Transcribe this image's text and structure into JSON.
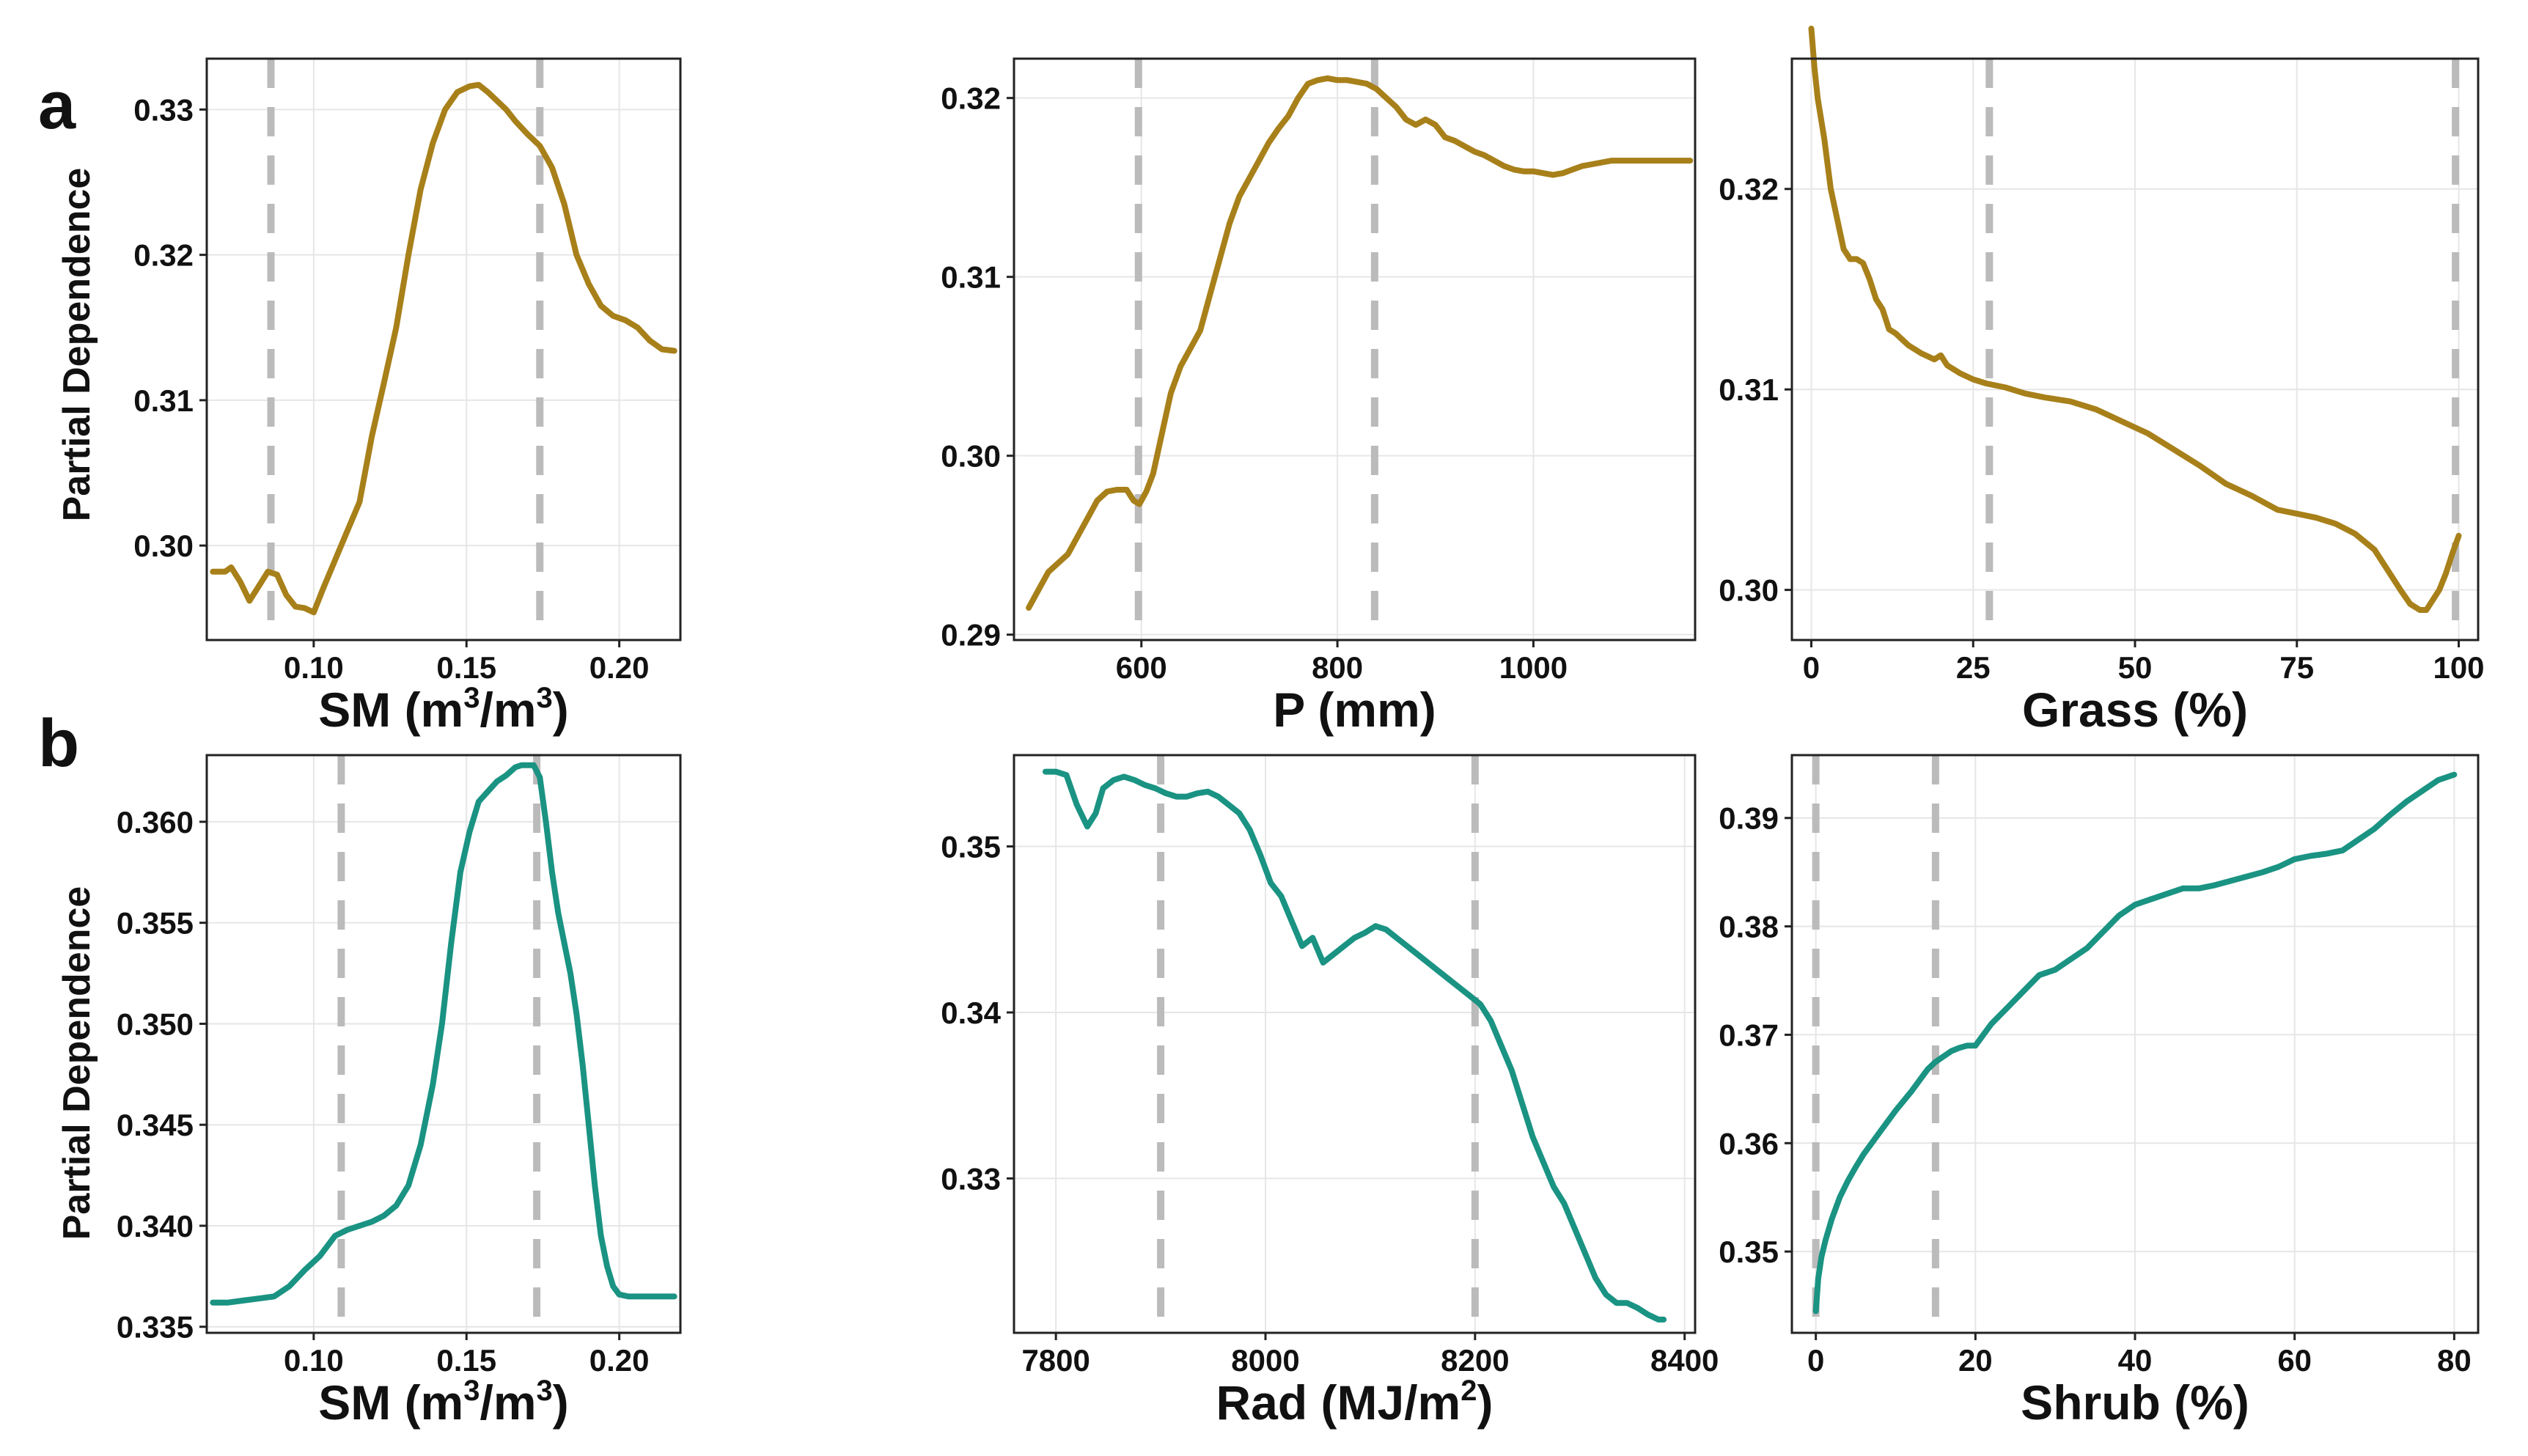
{
  "panel_labels": [
    "a",
    "b"
  ],
  "row_ylabel": "Partial Dependence",
  "colors": {
    "row_a": "#a8801a",
    "row_b": "#1a9383",
    "threshold": "#bbbbbb",
    "grid": "#e6e6e6"
  },
  "chart_data": [
    {
      "type": "line",
      "row": 0,
      "col": 0,
      "xlabel": [
        "SM (m",
        "3",
        "/m",
        "3",
        ")"
      ],
      "ylabel": "Partial Dependence",
      "xlim": [
        0.065,
        0.22
      ],
      "ylim": [
        0.2935,
        0.3335
      ],
      "xticks": [
        0.1,
        0.15,
        0.2
      ],
      "xtick_labels": [
        "0.10",
        "0.15",
        "0.20"
      ],
      "yticks": [
        0.3,
        0.31,
        0.32,
        0.33
      ],
      "ytick_labels": [
        "0.30",
        "0.31",
        "0.32",
        "0.33"
      ],
      "thresholds": [
        0.086,
        0.174
      ],
      "x": [
        0.067,
        0.071,
        0.073,
        0.076,
        0.079,
        0.082,
        0.085,
        0.088,
        0.091,
        0.094,
        0.097,
        0.1,
        0.103,
        0.107,
        0.111,
        0.115,
        0.119,
        0.123,
        0.127,
        0.131,
        0.135,
        0.139,
        0.143,
        0.147,
        0.151,
        0.154,
        0.157,
        0.16,
        0.163,
        0.166,
        0.17,
        0.174,
        0.178,
        0.182,
        0.186,
        0.19,
        0.194,
        0.198,
        0.202,
        0.206,
        0.21,
        0.214,
        0.218
      ],
      "y": [
        0.2982,
        0.2982,
        0.2985,
        0.2975,
        0.2962,
        0.2972,
        0.2982,
        0.298,
        0.2966,
        0.2958,
        0.2957,
        0.2954,
        0.297,
        0.299,
        0.301,
        0.303,
        0.3075,
        0.3112,
        0.315,
        0.32,
        0.3245,
        0.3277,
        0.33,
        0.3312,
        0.3316,
        0.3317,
        0.3312,
        0.3306,
        0.33,
        0.3292,
        0.3283,
        0.3275,
        0.326,
        0.3235,
        0.32,
        0.318,
        0.3165,
        0.3158,
        0.3155,
        0.315,
        0.3141,
        0.3135,
        0.3134
      ]
    },
    {
      "type": "line",
      "row": 0,
      "col": 1,
      "xlabel": [
        "P (mm)"
      ],
      "xlim": [
        470,
        1165
      ],
      "ylim": [
        0.2897,
        0.3222
      ],
      "xticks": [
        600,
        800,
        1000
      ],
      "xtick_labels": [
        "600",
        "800",
        "1000"
      ],
      "yticks": [
        0.29,
        0.3,
        0.31,
        0.32
      ],
      "ytick_labels": [
        "0.29",
        "0.30",
        "0.31",
        "0.32"
      ],
      "thresholds": [
        597,
        838
      ],
      "x": [
        485,
        495,
        505,
        515,
        525,
        535,
        545,
        555,
        565,
        575,
        585,
        592,
        598,
        605,
        612,
        620,
        630,
        640,
        650,
        660,
        670,
        680,
        690,
        700,
        710,
        720,
        730,
        740,
        750,
        760,
        770,
        780,
        790,
        800,
        810,
        820,
        830,
        840,
        850,
        860,
        870,
        880,
        890,
        900,
        910,
        920,
        930,
        940,
        950,
        960,
        970,
        980,
        990,
        1000,
        1010,
        1020,
        1030,
        1040,
        1050,
        1060,
        1070,
        1080,
        1090,
        1100,
        1110,
        1120,
        1130,
        1140,
        1150,
        1160
      ],
      "y": [
        0.2915,
        0.2925,
        0.2935,
        0.294,
        0.2945,
        0.2955,
        0.2965,
        0.2975,
        0.298,
        0.2981,
        0.2981,
        0.2975,
        0.2973,
        0.298,
        0.299,
        0.301,
        0.3035,
        0.305,
        0.306,
        0.307,
        0.309,
        0.311,
        0.313,
        0.3145,
        0.3155,
        0.3165,
        0.3175,
        0.3183,
        0.319,
        0.32,
        0.3208,
        0.321,
        0.3211,
        0.321,
        0.321,
        0.3209,
        0.3208,
        0.3205,
        0.32,
        0.3195,
        0.3188,
        0.3185,
        0.3188,
        0.3185,
        0.3178,
        0.3176,
        0.3173,
        0.317,
        0.3168,
        0.3165,
        0.3162,
        0.316,
        0.3159,
        0.3159,
        0.3158,
        0.3157,
        0.3158,
        0.316,
        0.3162,
        0.3163,
        0.3164,
        0.3165,
        0.3165,
        0.3165,
        0.3165,
        0.3165,
        0.3165,
        0.3165,
        0.3165,
        0.3165
      ]
    },
    {
      "type": "line",
      "row": 0,
      "col": 2,
      "xlabel": [
        "Grass (%)"
      ],
      "xlim": [
        -3,
        103
      ],
      "ylim": [
        0.2975,
        0.3265
      ],
      "xticks": [
        0,
        25,
        50,
        75,
        100
      ],
      "xtick_labels": [
        "0",
        "25",
        "50",
        "75",
        "100"
      ],
      "yticks": [
        0.3,
        0.31,
        0.32
      ],
      "ytick_labels": [
        "0.30",
        "0.31",
        "0.32"
      ],
      "thresholds": [
        27.5,
        99.5
      ],
      "x": [
        0,
        0.5,
        1,
        2,
        3,
        4,
        5,
        6,
        7,
        8,
        9,
        10,
        11,
        12,
        13,
        14,
        15,
        17,
        19,
        20,
        21,
        23,
        25,
        27,
        30,
        33,
        36,
        40,
        44,
        48,
        52,
        56,
        60,
        64,
        68,
        72,
        75,
        78,
        81,
        84,
        87,
        89,
        91,
        92.5,
        94,
        95,
        96,
        97,
        98,
        99,
        100
      ],
      "y": [
        0.328,
        0.326,
        0.3245,
        0.3225,
        0.32,
        0.3185,
        0.317,
        0.3165,
        0.3165,
        0.3163,
        0.3155,
        0.3145,
        0.314,
        0.313,
        0.3128,
        0.3125,
        0.3122,
        0.3118,
        0.3115,
        0.3117,
        0.3112,
        0.3108,
        0.3105,
        0.3103,
        0.3101,
        0.3098,
        0.3096,
        0.3094,
        0.309,
        0.3084,
        0.3078,
        0.307,
        0.3062,
        0.3053,
        0.3047,
        0.304,
        0.3038,
        0.3036,
        0.3033,
        0.3028,
        0.302,
        0.301,
        0.3,
        0.2993,
        0.299,
        0.299,
        0.2995,
        0.3,
        0.3008,
        0.3018,
        0.3027
      ]
    },
    {
      "type": "line",
      "row": 1,
      "col": 0,
      "xlabel": [
        "SM (m",
        "3",
        "/m",
        "3",
        ")"
      ],
      "ylabel": "Partial Dependence",
      "xlim": [
        0.065,
        0.22
      ],
      "ylim": [
        0.3347,
        0.3633
      ],
      "xticks": [
        0.1,
        0.15,
        0.2
      ],
      "xtick_labels": [
        "0.10",
        "0.15",
        "0.20"
      ],
      "yticks": [
        0.335,
        0.34,
        0.345,
        0.35,
        0.355,
        0.36
      ],
      "ytick_labels": [
        "0.335",
        "0.340",
        "0.345",
        "0.350",
        "0.355",
        "0.360"
      ],
      "thresholds": [
        0.109,
        0.173
      ],
      "x": [
        0.067,
        0.072,
        0.077,
        0.082,
        0.087,
        0.092,
        0.097,
        0.102,
        0.107,
        0.111,
        0.115,
        0.119,
        0.123,
        0.127,
        0.131,
        0.135,
        0.139,
        0.142,
        0.145,
        0.148,
        0.151,
        0.154,
        0.157,
        0.16,
        0.163,
        0.166,
        0.168,
        0.17,
        0.172,
        0.174,
        0.176,
        0.178,
        0.18,
        0.182,
        0.184,
        0.186,
        0.188,
        0.19,
        0.192,
        0.194,
        0.196,
        0.198,
        0.2,
        0.203,
        0.207,
        0.212,
        0.218
      ],
      "y": [
        0.3362,
        0.3362,
        0.3363,
        0.3364,
        0.3365,
        0.337,
        0.3378,
        0.3385,
        0.3395,
        0.3398,
        0.34,
        0.3402,
        0.3405,
        0.341,
        0.342,
        0.344,
        0.347,
        0.35,
        0.354,
        0.3575,
        0.3595,
        0.361,
        0.3615,
        0.362,
        0.3623,
        0.3627,
        0.3628,
        0.3628,
        0.3628,
        0.3622,
        0.36,
        0.3575,
        0.3555,
        0.354,
        0.3525,
        0.3505,
        0.348,
        0.345,
        0.342,
        0.3395,
        0.338,
        0.337,
        0.3366,
        0.3365,
        0.3365,
        0.3365,
        0.3365
      ]
    },
    {
      "type": "line",
      "row": 1,
      "col": 1,
      "xlabel": [
        "Rad (MJ/m",
        "2",
        ")"
      ],
      "xlim": [
        7760,
        8410
      ],
      "ylim": [
        0.3207,
        0.3555
      ],
      "xticks": [
        7800,
        8000,
        8200,
        8400
      ],
      "xtick_labels": [
        "7800",
        "8000",
        "8200",
        "8400"
      ],
      "yticks": [
        0.33,
        0.34,
        0.35
      ],
      "ytick_labels": [
        "0.33",
        "0.34",
        "0.35"
      ],
      "thresholds": [
        7900,
        8200
      ],
      "x": [
        7790,
        7800,
        7810,
        7820,
        7830,
        7838,
        7845,
        7855,
        7865,
        7875,
        7885,
        7895,
        7905,
        7915,
        7925,
        7935,
        7945,
        7955,
        7965,
        7975,
        7985,
        7995,
        8005,
        8015,
        8025,
        8035,
        8045,
        8055,
        8065,
        8075,
        8085,
        8095,
        8105,
        8115,
        8125,
        8135,
        8145,
        8155,
        8165,
        8175,
        8185,
        8195,
        8205,
        8215,
        8225,
        8235,
        8245,
        8255,
        8265,
        8275,
        8285,
        8295,
        8305,
        8315,
        8325,
        8335,
        8345,
        8355,
        8365,
        8375,
        8380
      ],
      "y": [
        0.3545,
        0.3545,
        0.3543,
        0.3525,
        0.3512,
        0.352,
        0.3535,
        0.354,
        0.3542,
        0.354,
        0.3537,
        0.3535,
        0.3532,
        0.353,
        0.353,
        0.3532,
        0.3533,
        0.353,
        0.3525,
        0.352,
        0.351,
        0.3495,
        0.3478,
        0.347,
        0.3455,
        0.344,
        0.3445,
        0.343,
        0.3435,
        0.344,
        0.3445,
        0.3448,
        0.3452,
        0.345,
        0.3445,
        0.344,
        0.3435,
        0.343,
        0.3425,
        0.342,
        0.3415,
        0.341,
        0.3405,
        0.3395,
        0.338,
        0.3365,
        0.3345,
        0.3325,
        0.331,
        0.3295,
        0.3285,
        0.327,
        0.3255,
        0.324,
        0.323,
        0.3225,
        0.3225,
        0.3222,
        0.3218,
        0.3215,
        0.3215
      ]
    },
    {
      "type": "line",
      "row": 1,
      "col": 2,
      "xlabel": [
        "Shrub (%)"
      ],
      "xlim": [
        -3,
        83
      ],
      "ylim": [
        0.3425,
        0.3958
      ],
      "xticks": [
        0,
        20,
        40,
        60,
        80
      ],
      "xtick_labels": [
        "0",
        "20",
        "40",
        "60",
        "80"
      ],
      "yticks": [
        0.35,
        0.36,
        0.37,
        0.38,
        0.39
      ],
      "ytick_labels": [
        "0.35",
        "0.36",
        "0.37",
        "0.38",
        "0.39"
      ],
      "thresholds": [
        0,
        15
      ],
      "x": [
        0,
        0.3,
        0.7,
        1.2,
        2,
        3,
        4,
        5,
        6,
        8,
        10,
        12,
        14,
        15,
        16,
        17,
        18,
        19,
        20,
        21,
        22,
        24,
        26,
        28,
        30,
        32,
        34,
        36,
        38,
        40,
        42,
        44,
        46,
        48,
        50,
        52,
        54,
        56,
        58,
        60,
        62,
        64,
        66,
        68,
        70,
        72,
        74,
        76,
        78,
        80
      ],
      "y": [
        0.3445,
        0.3475,
        0.3495,
        0.351,
        0.353,
        0.355,
        0.3565,
        0.3578,
        0.359,
        0.361,
        0.363,
        0.3648,
        0.3668,
        0.3675,
        0.368,
        0.3685,
        0.3688,
        0.369,
        0.369,
        0.37,
        0.371,
        0.3725,
        0.374,
        0.3755,
        0.376,
        0.377,
        0.378,
        0.3795,
        0.381,
        0.382,
        0.3825,
        0.383,
        0.3835,
        0.3835,
        0.3838,
        0.3842,
        0.3846,
        0.385,
        0.3855,
        0.3862,
        0.3865,
        0.3867,
        0.387,
        0.388,
        0.389,
        0.3903,
        0.3915,
        0.3925,
        0.3935,
        0.394
      ]
    }
  ]
}
